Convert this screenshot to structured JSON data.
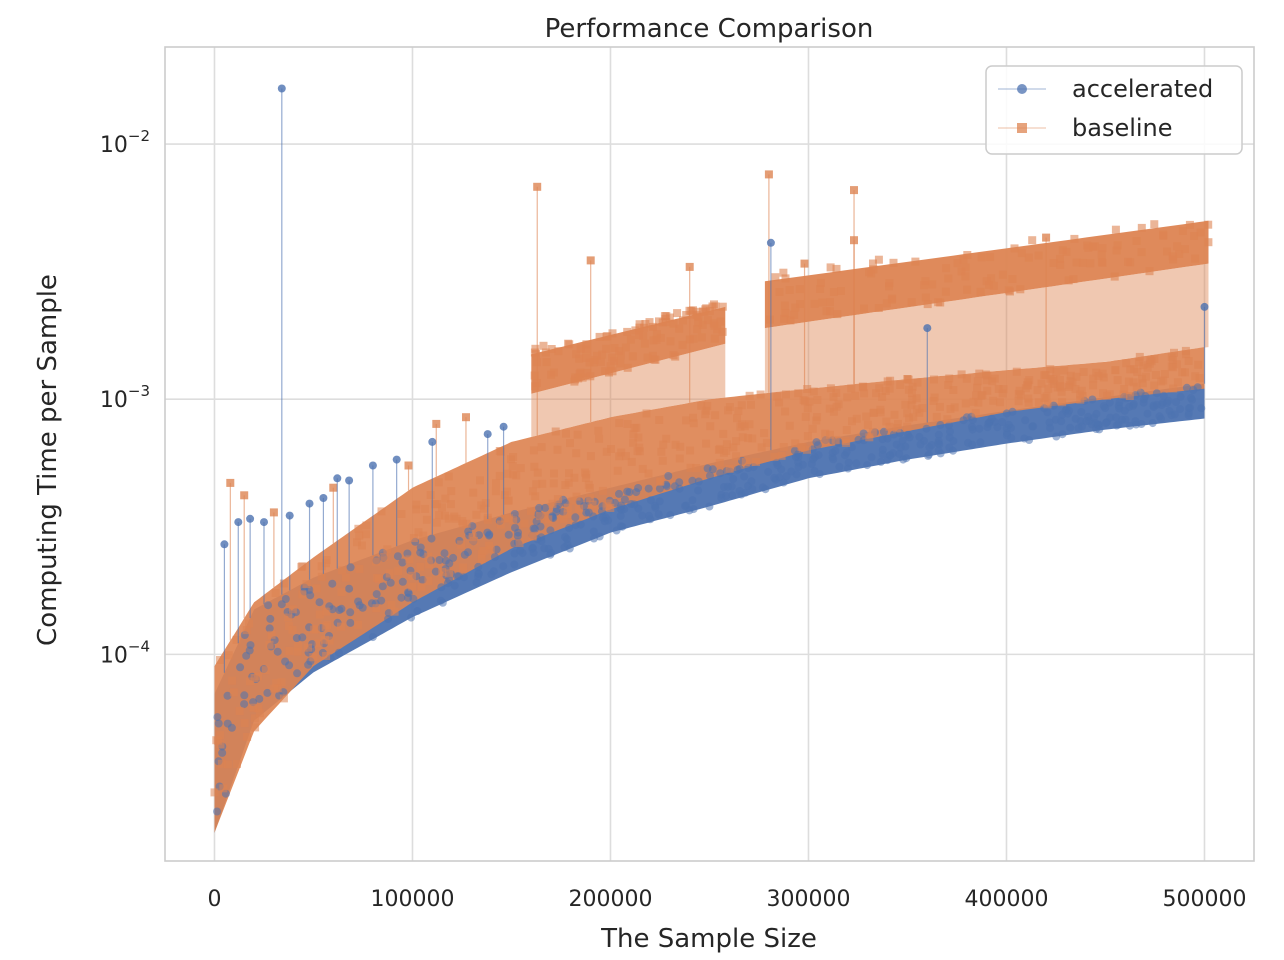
{
  "chart_data": {
    "type": "scatter",
    "title": "Performance Comparison",
    "xlabel": "The Sample Size",
    "ylabel": "Computing Time per Sample",
    "xscale": "linear",
    "yscale": "log",
    "xlim": [
      -25000,
      525000
    ],
    "ylim": [
      1.55e-05,
      0.024
    ],
    "xticks": [
      0,
      100000,
      200000,
      300000,
      400000,
      500000
    ],
    "xtick_labels": [
      "0",
      "100000",
      "200000",
      "300000",
      "400000",
      "500000"
    ],
    "yticks": [
      0.0001,
      0.001,
      0.01
    ],
    "ytick_labels": [
      {
        "base": "10",
        "exp": "−4"
      },
      {
        "base": "10",
        "exp": "−3"
      },
      {
        "base": "10",
        "exp": "−2"
      }
    ],
    "grid": true,
    "legend_position": "top-right",
    "series": [
      {
        "name": "accelerated",
        "marker": "circle",
        "color": "#4c72b0",
        "band": [
          {
            "x": 0,
            "low": 2e-05,
            "high": 7e-05
          },
          {
            "x": 20000,
            "low": 5.5e-05,
            "high": 0.00015
          },
          {
            "x": 50000,
            "low": 8.5e-05,
            "high": 0.0002
          },
          {
            "x": 100000,
            "low": 0.00014,
            "high": 0.00028
          },
          {
            "x": 150000,
            "low": 0.00021,
            "high": 0.00036
          },
          {
            "x": 200000,
            "low": 0.0003,
            "high": 0.00045
          },
          {
            "x": 250000,
            "low": 0.00038,
            "high": 0.00056
          },
          {
            "x": 300000,
            "low": 0.00049,
            "high": 0.00068
          },
          {
            "x": 350000,
            "low": 0.00058,
            "high": 0.00079
          },
          {
            "x": 400000,
            "low": 0.00067,
            "high": 0.0009
          },
          {
            "x": 450000,
            "low": 0.00076,
            "high": 0.00102
          },
          {
            "x": 500000,
            "low": 0.00084,
            "high": 0.00115
          }
        ],
        "outliers": [
          {
            "x": 34000,
            "y": 0.0165
          },
          {
            "x": 281000,
            "y": 0.0041
          },
          {
            "x": 500000,
            "y": 0.0023
          },
          {
            "x": 360000,
            "y": 0.0019
          },
          {
            "x": 5000,
            "y": 0.00027
          },
          {
            "x": 12000,
            "y": 0.00033
          },
          {
            "x": 18000,
            "y": 0.00034
          },
          {
            "x": 25000,
            "y": 0.00033
          },
          {
            "x": 38000,
            "y": 0.00035
          },
          {
            "x": 48000,
            "y": 0.00039
          },
          {
            "x": 55000,
            "y": 0.00041
          },
          {
            "x": 62000,
            "y": 0.00049
          },
          {
            "x": 68000,
            "y": 0.00048
          },
          {
            "x": 80000,
            "y": 0.00055
          },
          {
            "x": 92000,
            "y": 0.00058
          },
          {
            "x": 110000,
            "y": 0.00068
          },
          {
            "x": 138000,
            "y": 0.00073
          },
          {
            "x": 146000,
            "y": 0.00078
          }
        ]
      },
      {
        "name": "baseline",
        "marker": "square",
        "color": "#dd8452",
        "band": [
          {
            "x": 0,
            "low": 2e-05,
            "high": 9e-05
          },
          {
            "x": 20000,
            "low": 5e-05,
            "high": 0.00016
          },
          {
            "x": 50000,
            "low": 9e-05,
            "high": 0.00024
          },
          {
            "x": 100000,
            "low": 0.00016,
            "high": 0.00045
          },
          {
            "x": 150000,
            "low": 0.00026,
            "high": 0.00068
          },
          {
            "x": 200000,
            "low": 0.00037,
            "high": 0.00085
          },
          {
            "x": 250000,
            "low": 0.00049,
            "high": 0.001
          },
          {
            "x": 300000,
            "low": 0.00063,
            "high": 0.0011
          },
          {
            "x": 350000,
            "low": 0.00075,
            "high": 0.0012
          },
          {
            "x": 400000,
            "low": 0.00089,
            "high": 0.0013
          },
          {
            "x": 450000,
            "low": 0.001,
            "high": 0.0014
          },
          {
            "x": 500000,
            "low": 0.0011,
            "high": 0.0016
          }
        ],
        "upper_segments": [
          {
            "x_start": 160000,
            "x_end": 258000,
            "low_start": 0.00105,
            "low_end": 0.00165,
            "high_start": 0.0015,
            "high_end": 0.0023
          },
          {
            "x_start": 278000,
            "x_end": 502000,
            "low_start": 0.0019,
            "low_end": 0.0034,
            "high_start": 0.0029,
            "high_end": 0.005
          }
        ],
        "outliers": [
          {
            "x": 163000,
            "y": 0.0068
          },
          {
            "x": 280000,
            "y": 0.0076
          },
          {
            "x": 323000,
            "y": 0.0066
          },
          {
            "x": 190000,
            "y": 0.0035
          },
          {
            "x": 323000,
            "y": 0.0042
          },
          {
            "x": 8000,
            "y": 0.00047
          },
          {
            "x": 15000,
            "y": 0.00042
          },
          {
            "x": 30000,
            "y": 0.00036
          },
          {
            "x": 60000,
            "y": 0.00045
          },
          {
            "x": 98000,
            "y": 0.00055
          },
          {
            "x": 112000,
            "y": 0.0008
          },
          {
            "x": 127000,
            "y": 0.00085
          },
          {
            "x": 240000,
            "y": 0.0033
          },
          {
            "x": 298000,
            "y": 0.0034
          },
          {
            "x": 420000,
            "y": 0.0043
          },
          {
            "x": 350000,
            "y": 0.0012
          },
          {
            "x": 455000,
            "y": 0.0013
          }
        ]
      }
    ]
  }
}
